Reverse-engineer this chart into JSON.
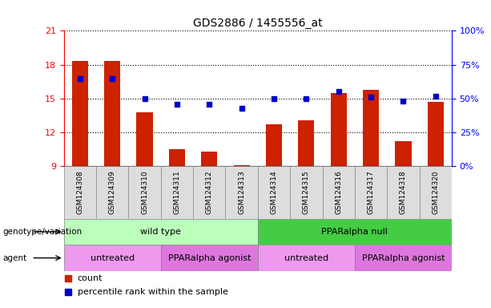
{
  "title": "GDS2886 / 1455556_at",
  "samples": [
    "GSM124308",
    "GSM124309",
    "GSM124310",
    "GSM124311",
    "GSM124312",
    "GSM124313",
    "GSM124314",
    "GSM124315",
    "GSM124316",
    "GSM124317",
    "GSM124318",
    "GSM124320"
  ],
  "counts": [
    18.3,
    18.3,
    13.8,
    10.5,
    10.3,
    9.1,
    12.7,
    13.1,
    15.5,
    15.8,
    11.2,
    14.7
  ],
  "percentile_ranks": [
    65,
    65,
    50,
    46,
    46,
    43,
    50,
    50,
    55,
    51,
    48,
    52
  ],
  "ylim_left": [
    9,
    21
  ],
  "ylim_right": [
    0,
    100
  ],
  "yticks_left": [
    9,
    12,
    15,
    18,
    21
  ],
  "yticks_right": [
    0,
    25,
    50,
    75,
    100
  ],
  "bar_color": "#cc2200",
  "dot_color": "#0000cc",
  "genotype_groups": [
    {
      "label": "wild type",
      "start": 0,
      "end": 6,
      "color": "#bbffbb"
    },
    {
      "label": "PPARalpha null",
      "start": 6,
      "end": 12,
      "color": "#44cc44"
    }
  ],
  "agent_groups": [
    {
      "label": "untreated",
      "start": 0,
      "end": 3,
      "color": "#ee99ee"
    },
    {
      "label": "PPARalpha agonist",
      "start": 3,
      "end": 6,
      "color": "#dd77dd"
    },
    {
      "label": "untreated",
      "start": 6,
      "end": 9,
      "color": "#ee99ee"
    },
    {
      "label": "PPARalpha agonist",
      "start": 9,
      "end": 12,
      "color": "#dd77dd"
    }
  ],
  "genotype_label": "genotype/variation",
  "agent_label": "agent",
  "legend_count_label": "count",
  "legend_pct_label": "percentile rank within the sample",
  "sample_bg_color": "#dddddd",
  "sample_border_color": "#888888"
}
